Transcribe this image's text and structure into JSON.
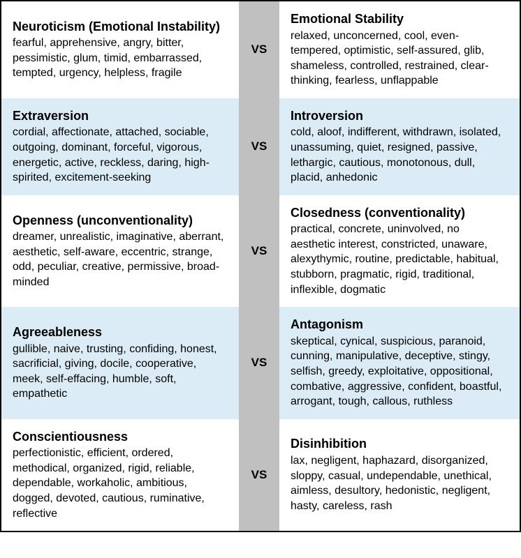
{
  "vs_label": "VS",
  "colors": {
    "row_alt_bg": "#dcecf6",
    "mid_bg": "#c0c0c0",
    "border": "#000000",
    "text": "#000000",
    "bg": "#ffffff"
  },
  "typography": {
    "title_fontsize": 18,
    "title_fontweight": 700,
    "desc_fontsize": 16,
    "vs_fontsize": 17,
    "vs_fontweight": 700,
    "font_family": "Segoe UI, Helvetica Neue, Arial, sans-serif"
  },
  "layout": {
    "total_width": 746,
    "total_height": 800,
    "left_width": 340,
    "mid_width": 58,
    "right_width": 340,
    "cell_padding": 16
  },
  "rows": [
    {
      "alt": false,
      "left_title": "Neuroticism (Emotional Instability)",
      "left_desc": "fearful, apprehensive, angry, bitter, pessimistic, glum, timid, embarrassed, tempted, urgency, helpless, fragile",
      "right_title": "Emotional Stability",
      "right_desc": "relaxed, unconcerned, cool, even-tempered, optimistic, self-assured, glib, shameless, controlled, restrained, clear-thinking, fearless, unflappable"
    },
    {
      "alt": true,
      "left_title": "Extraversion",
      "left_desc": "cordial, affectionate, attached, sociable, outgoing, dominant, forceful, vigorous, energetic, active, reckless, daring, high-spirited, excitement-seeking",
      "right_title": "Introversion",
      "right_desc": "cold, aloof, indifferent, withdrawn, isolated, unassuming, quiet, resigned, passive, lethargic, cautious, monotonous, dull, placid, anhedonic"
    },
    {
      "alt": false,
      "left_title": "Openness (unconventionality)",
      "left_desc": "dreamer, unrealistic, imaginative, aberrant, aesthetic, self-aware, eccentric, strange, odd, peculiar, creative, permissive, broad-minded",
      "right_title": "Closedness (conventionality)",
      "right_desc": "practical, concrete, uninvolved, no aesthetic interest, constricted, unaware, alexythymic, routine, predictable, habitual, stubborn, pragmatic, rigid, traditional, inflexible, dogmatic"
    },
    {
      "alt": true,
      "left_title": "Agreeableness",
      "left_desc": "gullible, naive, trusting, confiding, honest, sacrificial, giving, docile, cooperative, meek, self-effacing, humble, soft, empathetic",
      "right_title": "Antagonism",
      "right_desc": "skeptical, cynical, suspicious, paranoid, cunning, manipulative, deceptive, stingy, selfish, greedy, exploitative, oppositional, combative, aggressive, confident, boastful, arrogant, tough, callous, ruthless"
    },
    {
      "alt": false,
      "left_title": "Conscientiousness",
      "left_desc": "perfectionistic, efficient, ordered, methodical, organized, rigid, reliable, dependable, workaholic, ambitious, dogged, devoted, cautious, ruminative, reflective",
      "right_title": "Disinhibition",
      "right_desc": "lax, negligent, haphazard, disorganized, sloppy, casual, undependable, unethical, aimless, desultory, hedonistic, negligent, hasty, careless, rash"
    }
  ]
}
